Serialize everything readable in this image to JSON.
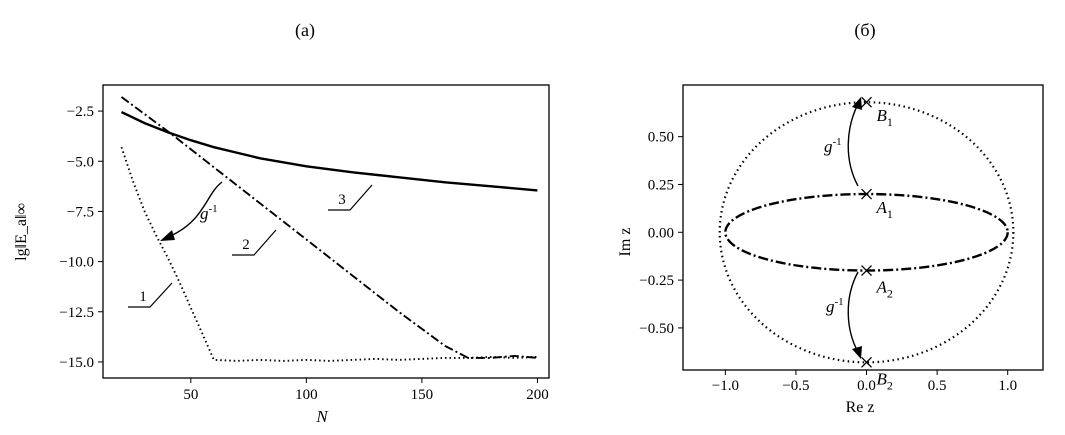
{
  "chart_data": [
    {
      "type": "line",
      "title": "(а)",
      "xlabel": "N",
      "ylabel": "lg‖E_a‖∞",
      "xlim": [
        12,
        205
      ],
      "ylim": [
        -15.8,
        -1.2
      ],
      "xticks": [
        50,
        100,
        150,
        200
      ],
      "yticks": [
        -2.5,
        -5.0,
        -7.5,
        -10.0,
        -12.5,
        -15.0
      ],
      "grid": false,
      "series": [
        {
          "name": "1",
          "style": "dotted",
          "x": [
            20,
            25,
            30,
            35,
            40,
            45,
            50,
            55,
            60,
            70,
            80,
            90,
            100,
            110,
            120,
            130,
            140,
            150,
            160,
            170,
            180,
            190,
            200
          ],
          "y": [
            -4.3,
            -6.0,
            -7.5,
            -8.7,
            -9.8,
            -11.0,
            -12.3,
            -13.6,
            -14.9,
            -14.95,
            -14.9,
            -14.95,
            -14.9,
            -14.95,
            -14.9,
            -14.85,
            -14.9,
            -14.85,
            -14.8,
            -14.8,
            -14.75,
            -14.8,
            -14.75
          ]
        },
        {
          "name": "2",
          "style": "dash-dot",
          "x": [
            20,
            40,
            60,
            80,
            100,
            120,
            140,
            160,
            170,
            180,
            190,
            200
          ],
          "y": [
            -1.8,
            -3.5,
            -5.3,
            -7.1,
            -8.9,
            -10.7,
            -12.5,
            -14.2,
            -14.8,
            -14.8,
            -14.7,
            -14.8
          ]
        },
        {
          "name": "3",
          "style": "solid",
          "x": [
            20,
            30,
            40,
            50,
            60,
            80,
            100,
            120,
            140,
            160,
            180,
            200
          ],
          "y": [
            -2.55,
            -3.1,
            -3.55,
            -3.95,
            -4.3,
            -4.85,
            -5.25,
            -5.55,
            -5.8,
            -6.05,
            -6.25,
            -6.45
          ]
        }
      ],
      "annotations": {
        "arrow_label": "g",
        "arrow_sup": "-1"
      }
    },
    {
      "type": "scatter",
      "title": "(б)",
      "xlabel": "Re z",
      "ylabel": "Im z",
      "xlim": [
        -1.3,
        1.25
      ],
      "ylim": [
        -0.72,
        0.77
      ],
      "xticks": [
        -1.0,
        -0.5,
        0.0,
        0.5,
        1.0
      ],
      "yticks": [
        0.5,
        0.25,
        0.0,
        -0.25,
        -0.5
      ],
      "grid": false,
      "curves": [
        {
          "shape": "ellipse",
          "style": "dotted",
          "cx": 0,
          "cy": 0,
          "rx": 1.04,
          "ry": 0.68
        },
        {
          "shape": "ellipse",
          "style": "dash-dot",
          "cx": 0,
          "cy": 0,
          "rx": 1.0,
          "ry": 0.2
        }
      ],
      "points": [
        {
          "label": "B",
          "sub": "1",
          "x": 0,
          "y": 0.68
        },
        {
          "label": "A",
          "sub": "1",
          "x": 0,
          "y": 0.2
        },
        {
          "label": "A",
          "sub": "2",
          "x": 0,
          "y": -0.2
        },
        {
          "label": "B",
          "sub": "2",
          "x": 0,
          "y": -0.68
        }
      ],
      "annotations": {
        "arrow_label": "g",
        "arrow_sup": "-1"
      }
    }
  ]
}
